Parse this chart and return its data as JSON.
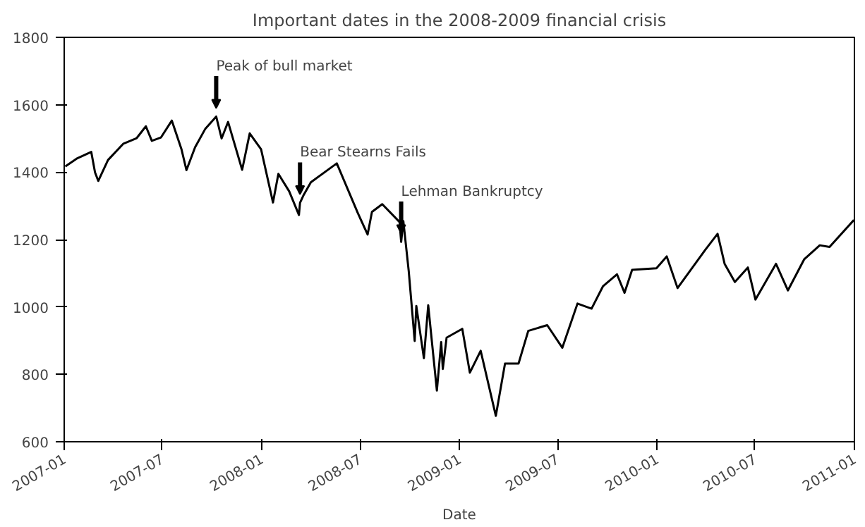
{
  "chart_data": {
    "type": "line",
    "title": "Important dates in the 2008-2009 financial crisis",
    "xlabel": "Date",
    "x": [
      "2007-01-03",
      "2007-01-24",
      "2007-02-20",
      "2007-02-27",
      "2007-03-05",
      "2007-03-23",
      "2007-04-20",
      "2007-05-15",
      "2007-06-01",
      "2007-06-12",
      "2007-06-29",
      "2007-07-19",
      "2007-08-06",
      "2007-08-15",
      "2007-08-31",
      "2007-09-19",
      "2007-10-09",
      "2007-10-19",
      "2007-10-31",
      "2007-11-26",
      "2007-12-10",
      "2007-12-31",
      "2008-01-22",
      "2008-02-01",
      "2008-02-21",
      "2008-03-10",
      "2008-03-12",
      "2008-03-18",
      "2008-04-01",
      "2008-05-19",
      "2008-06-27",
      "2008-07-15",
      "2008-07-23",
      "2008-08-11",
      "2008-09-12",
      "2008-09-15",
      "2008-09-19",
      "2008-09-29",
      "2008-10-10",
      "2008-10-13",
      "2008-10-27",
      "2008-11-04",
      "2008-11-20",
      "2008-11-28",
      "2008-12-01",
      "2008-12-08",
      "2009-01-06",
      "2009-01-20",
      "2009-02-09",
      "2009-03-09",
      "2009-03-26",
      "2009-04-20",
      "2009-05-08",
      "2009-06-12",
      "2009-07-10",
      "2009-08-07",
      "2009-09-02",
      "2009-09-23",
      "2009-10-19",
      "2009-11-02",
      "2009-11-16",
      "2009-12-31",
      "2010-01-19",
      "2010-02-08",
      "2010-03-31",
      "2010-04-23",
      "2010-05-06",
      "2010-05-25",
      "2010-06-18",
      "2010-07-02",
      "2010-08-09",
      "2010-08-31",
      "2010-09-30",
      "2010-10-29",
      "2010-11-16",
      "2010-12-31"
    ],
    "series": [
      {
        "color": "#000000",
        "values": [
          1417,
          1440,
          1460,
          1399,
          1374,
          1436,
          1484,
          1501,
          1536,
          1493,
          1503,
          1553,
          1467,
          1406,
          1474,
          1529,
          1565,
          1500,
          1549,
          1407,
          1515,
          1468,
          1310,
          1395,
          1343,
          1273,
          1309,
          1330,
          1370,
          1426,
          1278,
          1215,
          1282,
          1305,
          1252,
          1193,
          1255,
          1106,
          899,
          1003,
          848,
          1005,
          752,
          896,
          816,
          909,
          935,
          805,
          870,
          677,
          832,
          832,
          929,
          946,
          879,
          1010,
          995,
          1061,
          1097,
          1042,
          1110,
          1115,
          1150,
          1056,
          1169,
          1217,
          1128,
          1074,
          1117,
          1022,
          1128,
          1049,
          1141,
          1183,
          1178,
          1258
        ]
      }
    ],
    "xlim": [
      "2007-01-01",
      "2011-01-01"
    ],
    "xticks": [
      {
        "value": "2007-01-01",
        "label": "2007-01"
      },
      {
        "value": "2007-07-01",
        "label": "2007-07"
      },
      {
        "value": "2008-01-01",
        "label": "2008-01"
      },
      {
        "value": "2008-07-01",
        "label": "2008-07"
      },
      {
        "value": "2009-01-01",
        "label": "2009-01"
      },
      {
        "value": "2009-07-01",
        "label": "2009-07"
      },
      {
        "value": "2010-01-01",
        "label": "2010-01"
      },
      {
        "value": "2010-07-01",
        "label": "2010-07"
      },
      {
        "value": "2011-01-01",
        "label": "2011-01"
      }
    ],
    "ylim": [
      600,
      1800
    ],
    "yticks": [
      600,
      800,
      1000,
      1200,
      1400,
      1600,
      1800
    ],
    "annotations": [
      {
        "text": "Peak of bull market",
        "x": "2007-10-09",
        "y": 1565
      },
      {
        "text": "Bear Stearns Fails",
        "x": "2008-03-12",
        "y": 1309
      },
      {
        "text": "Lehman Bankruptcy",
        "x": "2008-09-15",
        "y": 1193
      }
    ],
    "grid": false
  }
}
